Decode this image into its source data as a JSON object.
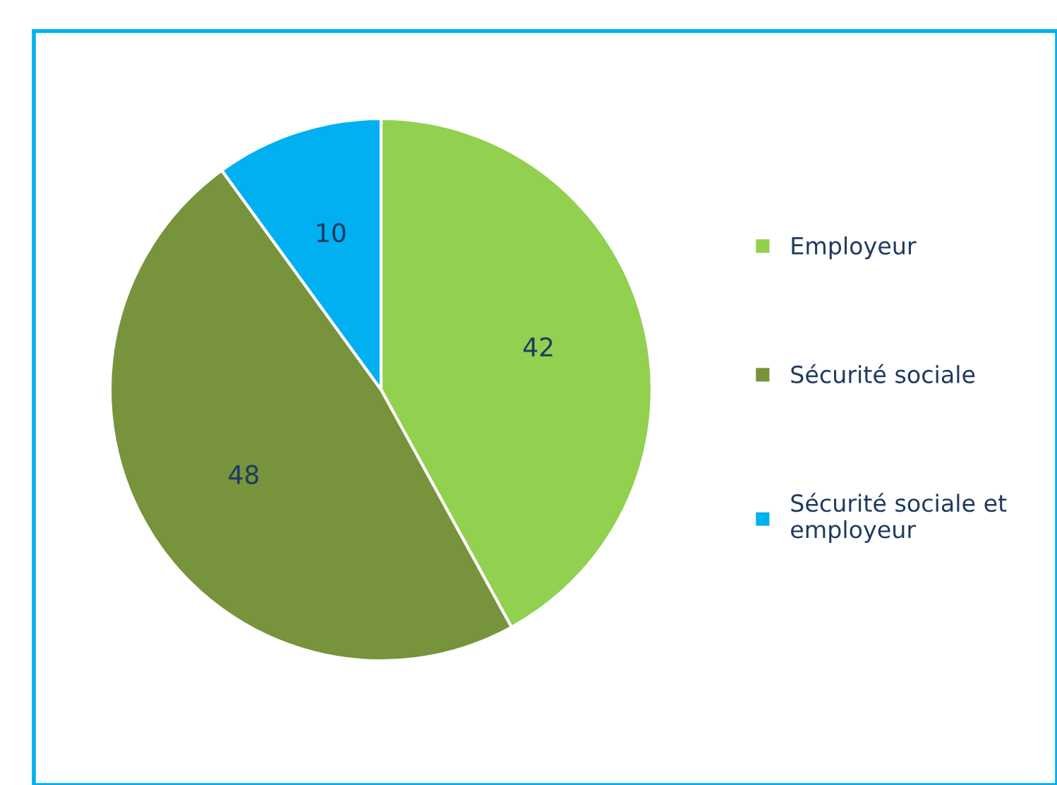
{
  "chart_data": {
    "type": "pie",
    "categories": [
      "Employeur",
      "Sécurité sociale",
      "Sécurité sociale et\nemployeur"
    ],
    "values": [
      42,
      48,
      10
    ],
    "colors": [
      "#92d050",
      "#77933c",
      "#00b0f0"
    ],
    "data_labels": true,
    "legend": "right"
  }
}
